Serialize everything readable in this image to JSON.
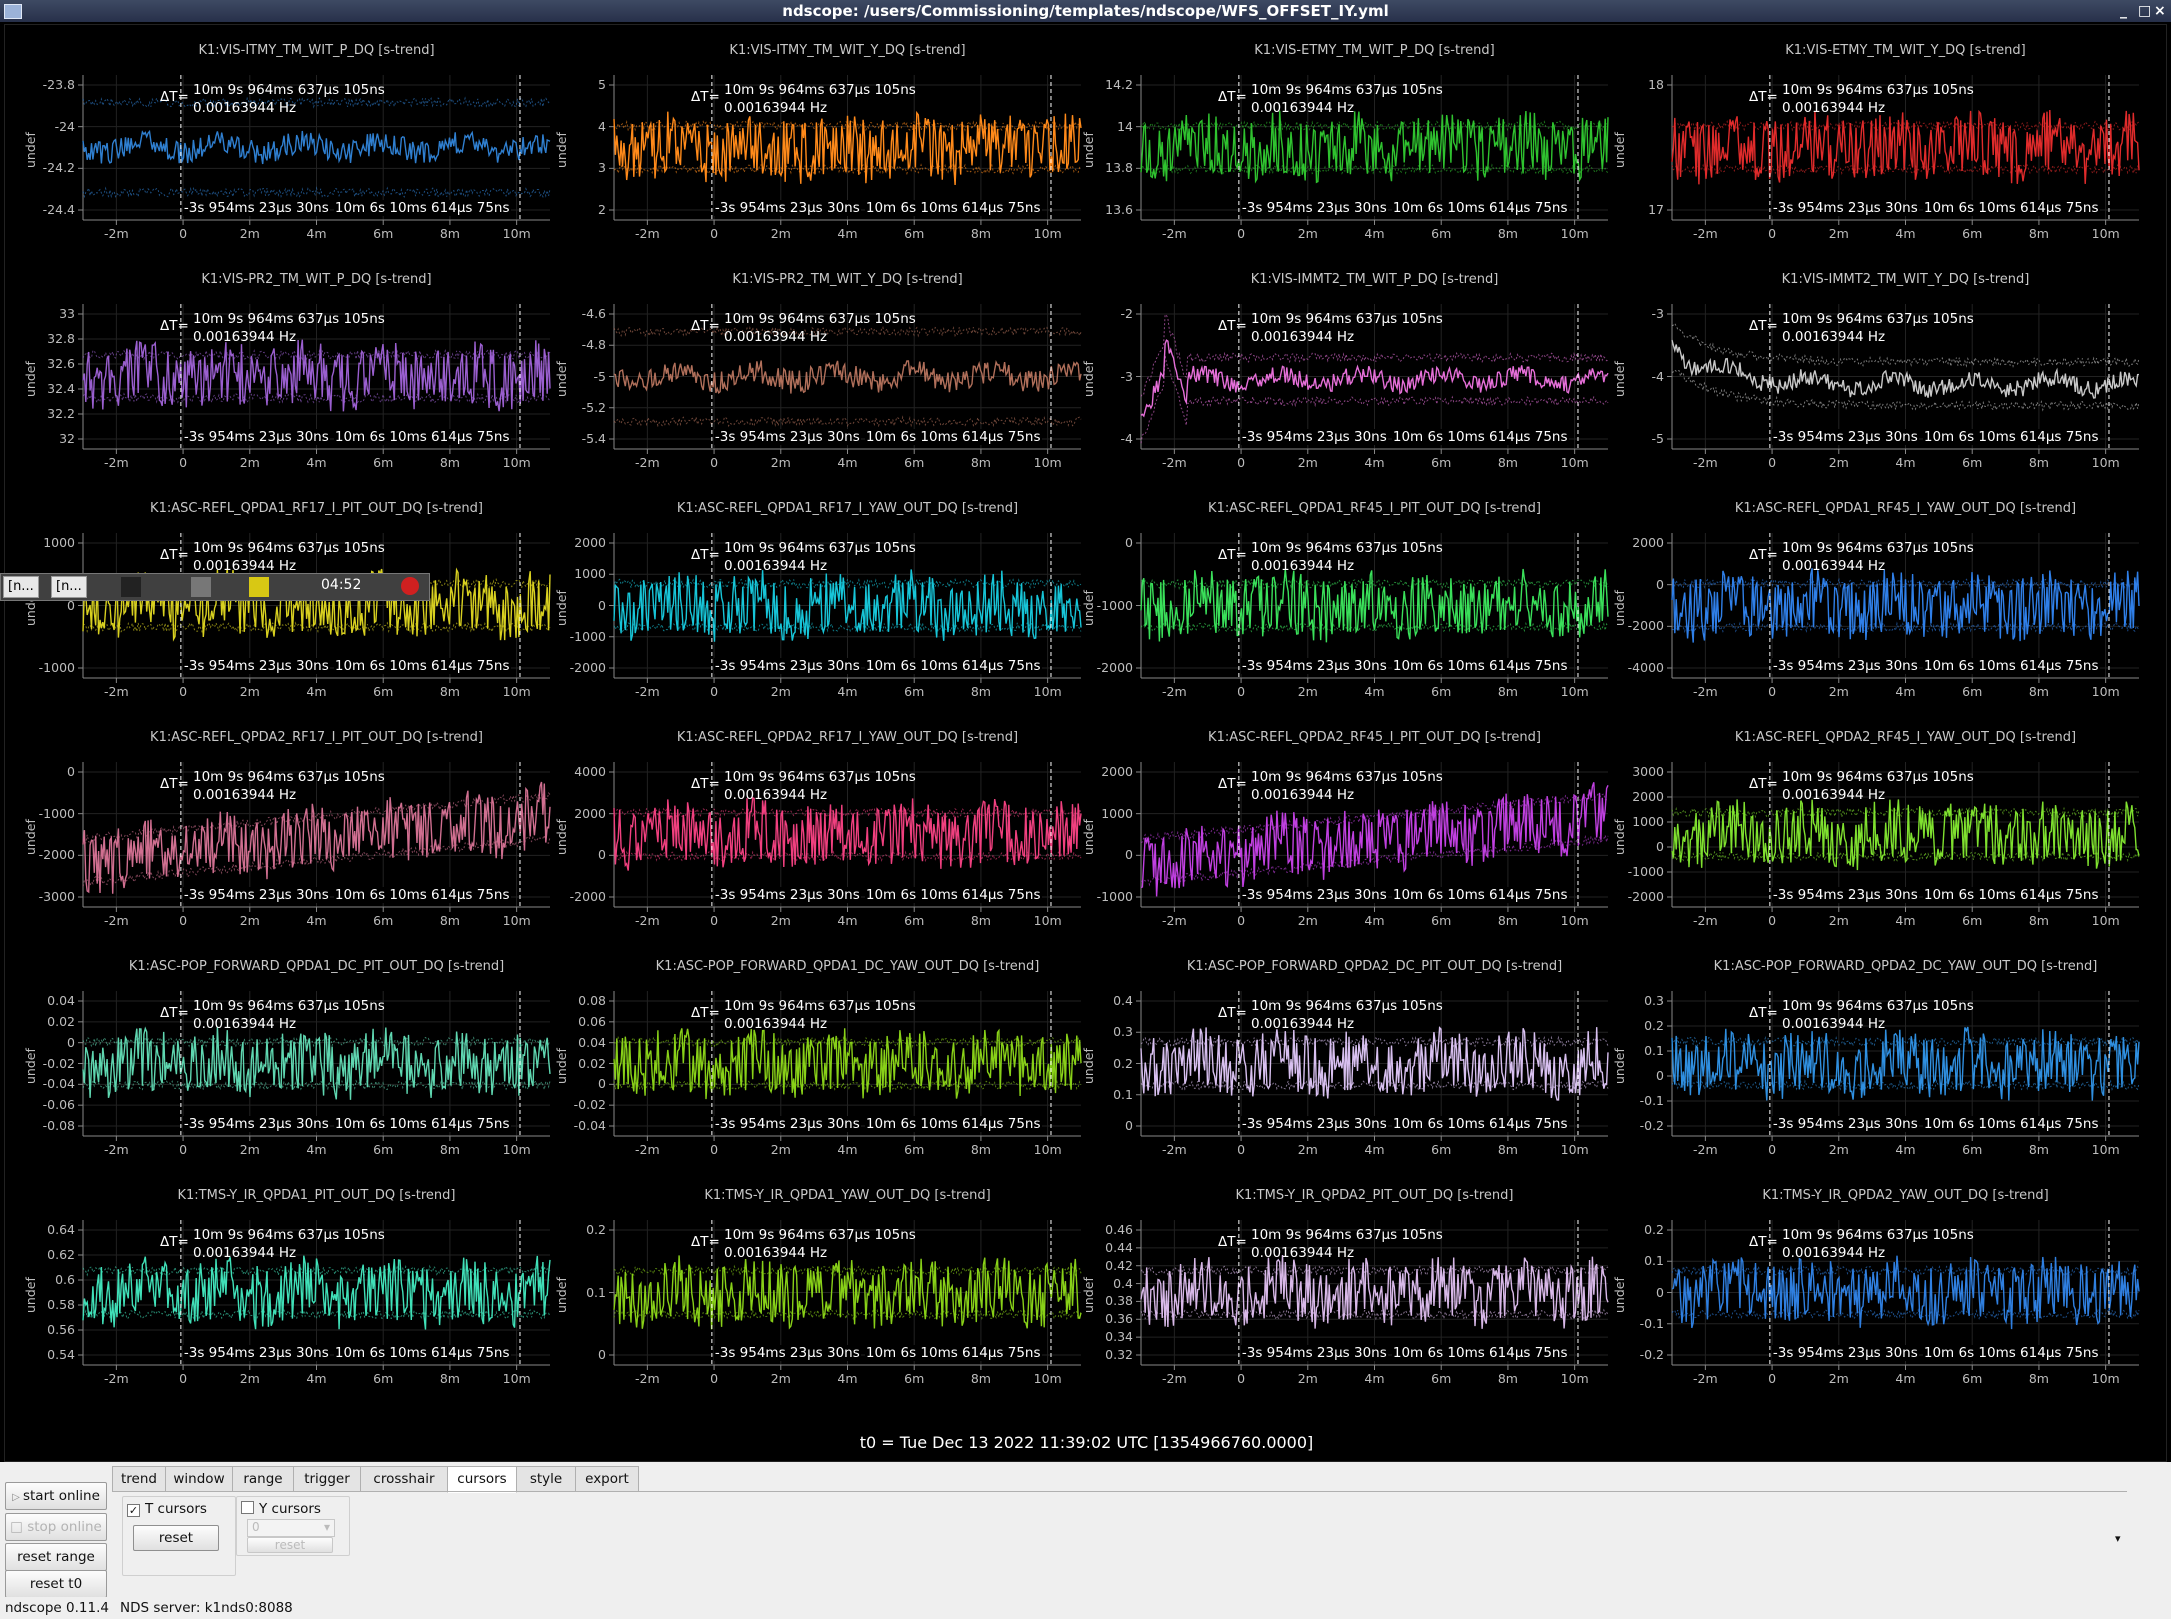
{
  "window": {
    "title": "ndscope: /users/Commissioning/templates/ndscope/WFS_OFFSET_IY.yml",
    "controls": [
      "_",
      "□",
      "×"
    ]
  },
  "panels_common": {
    "delta_t": "10m 9s 964ms 637μs 105ns",
    "delta_t_label": "ΔT=",
    "delta_hz": "0.00163944 Hz",
    "cursor_t1": "-3s 954ms 23μs 30ns",
    "cursor_t2": "10m 6s 10ms 614μs 75ns",
    "ylabel": "undef",
    "xticks": [
      "-2m",
      "0",
      "2m",
      "4m",
      "6m",
      "8m",
      "10m"
    ]
  },
  "panels": [
    {
      "title": "K1:VIS-ITMY_TM_WIT_P_DQ [s-trend]",
      "color": "#2f7fd0",
      "yticks": [
        "-23.8",
        "-24",
        "-24.2",
        "-24.4"
      ],
      "mode": "band"
    },
    {
      "title": "K1:VIS-ITMY_TM_WIT_Y_DQ [s-trend]",
      "color": "#ff8a1a",
      "yticks": [
        "5",
        "4",
        "3",
        "2"
      ],
      "mode": "mid"
    },
    {
      "title": "K1:VIS-ETMY_TM_WIT_P_DQ [s-trend]",
      "color": "#2fc22f",
      "yticks": [
        "14.2",
        "14",
        "13.8",
        "13.6"
      ],
      "mode": "mid"
    },
    {
      "title": "K1:VIS-ETMY_TM_WIT_Y_DQ [s-trend]",
      "color": "#e02b2b",
      "yticks": [
        "18",
        "17"
      ],
      "mode": "mid"
    },
    {
      "title": "K1:VIS-PR2_TM_WIT_P_DQ [s-trend]",
      "color": "#9a5fcf",
      "yticks": [
        "33",
        "32.8",
        "32.6",
        "32.4",
        "32.2",
        "32"
      ],
      "mode": "mid"
    },
    {
      "title": "K1:VIS-PR2_TM_WIT_Y_DQ [s-trend]",
      "color": "#b06f5a",
      "yticks": [
        "-4.6",
        "-4.8",
        "-5",
        "-5.2",
        "-5.4"
      ],
      "mode": "band"
    },
    {
      "title": "K1:VIS-IMMT2_TM_WIT_P_DQ [s-trend]",
      "color": "#e56fd8",
      "yticks": [
        "-2",
        "-3",
        "-4"
      ],
      "mode": "spike"
    },
    {
      "title": "K1:VIS-IMMT2_TM_WIT_Y_DQ [s-trend]",
      "color": "#c8c8c8",
      "yticks": [
        "-3",
        "-4",
        "-5"
      ],
      "mode": "decay"
    },
    {
      "title": "K1:ASC-REFL_QPDA1_RF17_I_PIT_OUT_DQ [s-trend]",
      "color": "#d8d020",
      "yticks": [
        "1000",
        "0",
        "-1000"
      ],
      "mode": "mid"
    },
    {
      "title": "K1:ASC-REFL_QPDA1_RF17_I_YAW_OUT_DQ [s-trend]",
      "color": "#17c5d8",
      "yticks": [
        "2000",
        "1000",
        "0",
        "-1000",
        "-2000"
      ],
      "mode": "mid"
    },
    {
      "title": "K1:ASC-REFL_QPDA1_RF45_I_PIT_OUT_DQ [s-trend]",
      "color": "#3ae05a",
      "yticks": [
        "0",
        "-1000",
        "-2000"
      ],
      "mode": "mid"
    },
    {
      "title": "K1:ASC-REFL_QPDA1_RF45_I_YAW_OUT_DQ [s-trend]",
      "color": "#2f7fe8",
      "yticks": [
        "2000",
        "0",
        "-2000",
        "-4000"
      ],
      "mode": "mid"
    },
    {
      "title": "K1:ASC-REFL_QPDA2_RF17_I_PIT_OUT_DQ [s-trend]",
      "color": "#d06f90",
      "yticks": [
        "0",
        "-1000",
        "-2000",
        "-3000"
      ],
      "mode": "rise"
    },
    {
      "title": "K1:ASC-REFL_QPDA2_RF17_I_YAW_OUT_DQ [s-trend]",
      "color": "#f0407f",
      "yticks": [
        "4000",
        "2000",
        "0",
        "-2000"
      ],
      "mode": "mid"
    },
    {
      "title": "K1:ASC-REFL_QPDA2_RF45_I_PIT_OUT_DQ [s-trend]",
      "color": "#c040e0",
      "yticks": [
        "2000",
        "1000",
        "0",
        "-1000"
      ],
      "mode": "rise"
    },
    {
      "title": "K1:ASC-REFL_QPDA2_RF45_I_YAW_OUT_DQ [s-trend]",
      "color": "#7fe02f",
      "yticks": [
        "3000",
        "2000",
        "1000",
        "0",
        "-1000",
        "-2000"
      ],
      "mode": "mid"
    },
    {
      "title": "K1:ASC-POP_FORWARD_QPDA1_DC_PIT_OUT_DQ [s-trend]",
      "color": "#5fd6b0",
      "yticks": [
        "0.04",
        "0.02",
        "0",
        "-0.02",
        "-0.04",
        "-0.06",
        "-0.08"
      ],
      "mode": "mid"
    },
    {
      "title": "K1:ASC-POP_FORWARD_QPDA1_DC_YAW_OUT_DQ [s-trend]",
      "color": "#88d018",
      "yticks": [
        "0.08",
        "0.06",
        "0.04",
        "0.02",
        "0",
        "-0.02",
        "-0.04"
      ],
      "mode": "mid"
    },
    {
      "title": "K1:ASC-POP_FORWARD_QPDA2_DC_PIT_OUT_DQ [s-trend]",
      "color": "#d8c0f0",
      "yticks": [
        "0.4",
        "0.3",
        "0.2",
        "0.1",
        "0"
      ],
      "mode": "mid"
    },
    {
      "title": "K1:ASC-POP_FORWARD_QPDA2_DC_YAW_OUT_DQ [s-trend]",
      "color": "#2f8fe0",
      "yticks": [
        "0.3",
        "0.2",
        "0.1",
        "0",
        "-0.1",
        "-0.2"
      ],
      "mode": "mid"
    },
    {
      "title": "K1:TMS-Y_IR_QPDA1_PIT_OUT_DQ [s-trend]",
      "color": "#40e0b8",
      "yticks": [
        "0.64",
        "0.62",
        "0.6",
        "0.58",
        "0.56",
        "0.54"
      ],
      "mode": "mid"
    },
    {
      "title": "K1:TMS-Y_IR_QPDA1_YAW_OUT_DQ [s-trend]",
      "color": "#88d018",
      "yticks": [
        "0.2",
        "0.1",
        "0"
      ],
      "mode": "mid"
    },
    {
      "title": "K1:TMS-Y_IR_QPDA2_PIT_OUT_DQ [s-trend]",
      "color": "#d8b8e8",
      "yticks": [
        "0.46",
        "0.44",
        "0.42",
        "0.4",
        "0.38",
        "0.36",
        "0.34",
        "0.32"
      ],
      "mode": "mid"
    },
    {
      "title": "K1:TMS-Y_IR_QPDA2_YAW_OUT_DQ [s-trend]",
      "color": "#2f7fe0",
      "yticks": [
        "0.2",
        "0.1",
        "0",
        "-0.1",
        "-0.2"
      ],
      "mode": "mid"
    }
  ],
  "t0_label": "t0 = Tue Dec 13 2022 11:39:02 UTC [1354966760.0000]",
  "taskbar": {
    "item1": "[n...",
    "item2": "[n...",
    "clock": "04:52"
  },
  "left_buttons": {
    "start_online": "start online",
    "stop_online": "stop online",
    "reset_range": "reset range",
    "reset_t0": "reset t0"
  },
  "tabs": [
    "trend",
    "window",
    "range",
    "trigger",
    "crosshair",
    "cursors",
    "style",
    "export"
  ],
  "active_tab": "cursors",
  "cursors_tab": {
    "t_cursors_label": "T cursors",
    "t_cursors_checked": true,
    "y_cursors_label": "Y cursors",
    "y_cursors_checked": false,
    "reset_label": "reset",
    "y_select_value": "0",
    "y_reset_label": "reset"
  },
  "status": {
    "version": "ndscope 0.11.4",
    "server": "NDS server: k1nds0:8088"
  }
}
